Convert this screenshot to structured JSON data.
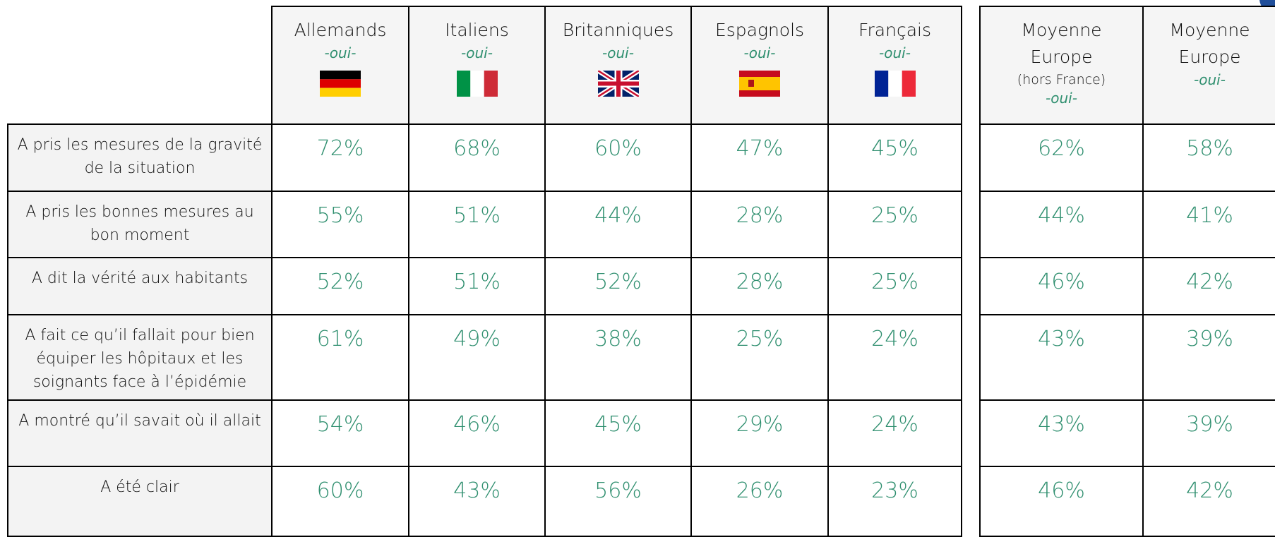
{
  "table": {
    "columns": [
      {
        "name": "Allemands",
        "sub": "-oui-"
      },
      {
        "name": "Italiens",
        "sub": "-oui-"
      },
      {
        "name": "Britanniques",
        "sub": "-oui-"
      },
      {
        "name": "Espagnols",
        "sub": "-oui-"
      },
      {
        "name": "Français",
        "sub": "-oui-"
      },
      {
        "name": "Moyenne Europe",
        "note": "(hors France)",
        "sub": "-oui-"
      },
      {
        "name": "Moyenne Europe",
        "sub": "-oui-"
      }
    ],
    "rows": [
      {
        "label": "A pris les mesures de la gravité de la situation",
        "values": [
          "72%",
          "68%",
          "60%",
          "47%",
          "45%",
          "62%",
          "58%"
        ]
      },
      {
        "label": "A pris les bonnes mesures au bon moment",
        "values": [
          "55%",
          "51%",
          "44%",
          "28%",
          "25%",
          "44%",
          "41%"
        ]
      },
      {
        "label": "A dit la vérité aux habitants",
        "values": [
          "52%",
          "51%",
          "52%",
          "28%",
          "25%",
          "46%",
          "42%"
        ]
      },
      {
        "label": "A fait ce qu’il fallait pour bien équiper les hôpitaux et les soignants face à l’épidémie",
        "values": [
          "61%",
          "49%",
          "38%",
          "25%",
          "24%",
          "43%",
          "39%"
        ]
      },
      {
        "label": "A montré qu’il savait où il allait",
        "values": [
          "54%",
          "46%",
          "45%",
          "29%",
          "24%",
          "43%",
          "39%"
        ]
      },
      {
        "label": "A été clair",
        "values": [
          "60%",
          "43%",
          "56%",
          "26%",
          "23%",
          "46%",
          "42%"
        ]
      }
    ]
  }
}
